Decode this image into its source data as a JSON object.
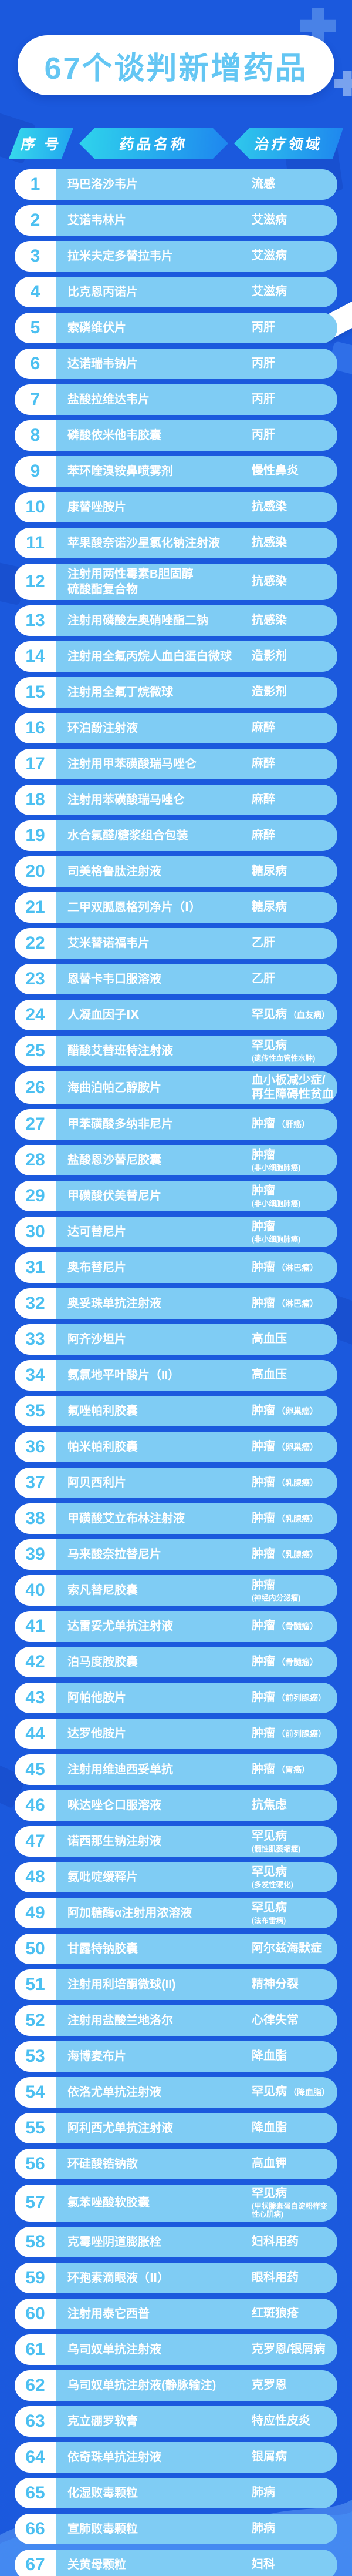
{
  "page": {
    "title": "67个谈判新增药品"
  },
  "colors": {
    "background": "#1b59dd",
    "row_body": "#7fccf4",
    "number_blue": "#4cc0f1",
    "title_blue": "#64c6f3",
    "banner_gradient_start": "#38daec",
    "banner_gradient_end": "#1e86ef",
    "wave_light": "#4489f1",
    "wave_lighter": "#5f9cf4",
    "text_white": "#ffffff"
  },
  "table": {
    "columns": [
      "序 号",
      "药品名称",
      "治疗领域"
    ],
    "rows": [
      {
        "no": "1",
        "name": "玛巴洛沙韦片",
        "area": "流感",
        "note": "",
        "note_style": "none"
      },
      {
        "no": "2",
        "name": "艾诺韦林片",
        "area": "艾滋病",
        "note": "",
        "note_style": "none"
      },
      {
        "no": "3",
        "name": "拉米夫定多替拉韦片",
        "area": "艾滋病",
        "note": "",
        "note_style": "none"
      },
      {
        "no": "4",
        "name": "比克恩丙诺片",
        "area": "艾滋病",
        "note": "",
        "note_style": "none"
      },
      {
        "no": "5",
        "name": "索磷维伏片",
        "area": "丙肝",
        "note": "",
        "note_style": "none"
      },
      {
        "no": "6",
        "name": "达诺瑞韦钠片",
        "area": "丙肝",
        "note": "",
        "note_style": "none"
      },
      {
        "no": "7",
        "name": "盐酸拉维达韦片",
        "area": "丙肝",
        "note": "",
        "note_style": "none"
      },
      {
        "no": "8",
        "name": "磷酸依米他韦胶囊",
        "area": "丙肝",
        "note": "",
        "note_style": "none"
      },
      {
        "no": "9",
        "name": "苯环喹溴铵鼻喷雾剂",
        "area": "慢性鼻炎",
        "note": "",
        "note_style": "none"
      },
      {
        "no": "10",
        "name": "康替唑胺片",
        "area": "抗感染",
        "note": "",
        "note_style": "none"
      },
      {
        "no": "11",
        "name": "苹果酸奈诺沙星氯化钠注射液",
        "area": "抗感染",
        "note": "",
        "note_style": "none"
      },
      {
        "no": "12",
        "name": "注射用两性霉素B胆固醇\n硫酸酯复合物",
        "area": "抗感染",
        "note": "",
        "note_style": "none"
      },
      {
        "no": "13",
        "name": "注射用磷酸左奥硝唑酯二钠",
        "area": "抗感染",
        "note": "",
        "note_style": "none"
      },
      {
        "no": "14",
        "name": "注射用全氟丙烷人血白蛋白微球",
        "area": "造影剂",
        "note": "",
        "note_style": "none"
      },
      {
        "no": "15",
        "name": "注射用全氟丁烷微球",
        "area": "造影剂",
        "note": "",
        "note_style": "none"
      },
      {
        "no": "16",
        "name": "环泊酚注射液",
        "area": "麻醉",
        "note": "",
        "note_style": "none"
      },
      {
        "no": "17",
        "name": "注射用甲苯磺酸瑞马唑仑",
        "area": "麻醉",
        "note": "",
        "note_style": "none"
      },
      {
        "no": "18",
        "name": "注射用苯磺酸瑞马唑仑",
        "area": "麻醉",
        "note": "",
        "note_style": "none"
      },
      {
        "no": "19",
        "name": "水合氯醛/糖浆组合包装",
        "area": "麻醉",
        "note": "",
        "note_style": "none"
      },
      {
        "no": "20",
        "name": "司美格鲁肽注射液",
        "area": "糖尿病",
        "note": "",
        "note_style": "none"
      },
      {
        "no": "21",
        "name": "二甲双胍恩格列净片（Ⅰ）",
        "area": "糖尿病",
        "note": "",
        "note_style": "none"
      },
      {
        "no": "22",
        "name": "艾米替诺福韦片",
        "area": "乙肝",
        "note": "",
        "note_style": "none"
      },
      {
        "no": "23",
        "name": "恩替卡韦口服溶液",
        "area": "乙肝",
        "note": "",
        "note_style": "none"
      },
      {
        "no": "24",
        "name": "人凝血因子Ⅸ",
        "area": "罕见病",
        "note": "（血友病）",
        "note_style": "inline"
      },
      {
        "no": "25",
        "name": "醋酸艾替班特注射液",
        "area": "罕见病",
        "note": "(遗传性血管性水肿)",
        "note_style": "block"
      },
      {
        "no": "26",
        "name": "海曲泊帕乙醇胺片",
        "area": "血小板减少症/\n再生障碍性贫血",
        "note": "",
        "note_style": "none"
      },
      {
        "no": "27",
        "name": "甲苯磺酸多纳非尼片",
        "area": "肿瘤",
        "note": "（肝癌）",
        "note_style": "inline"
      },
      {
        "no": "28",
        "name": "盐酸恩沙替尼胶囊",
        "area": "肿瘤",
        "note": "(非小细胞肺癌)",
        "note_style": "block"
      },
      {
        "no": "29",
        "name": "甲磺酸伏美替尼片",
        "area": "肿瘤",
        "note": "(非小细胞肺癌)",
        "note_style": "block"
      },
      {
        "no": "30",
        "name": "达可替尼片",
        "area": "肿瘤",
        "note": "(非小细胞肺癌)",
        "note_style": "block"
      },
      {
        "no": "31",
        "name": "奥布替尼片",
        "area": "肿瘤",
        "note": "（淋巴瘤）",
        "note_style": "inline"
      },
      {
        "no": "32",
        "name": "奥妥珠单抗注射液",
        "area": "肿瘤",
        "note": "（淋巴瘤）",
        "note_style": "inline"
      },
      {
        "no": "33",
        "name": "阿齐沙坦片",
        "area": "高血压",
        "note": "",
        "note_style": "none"
      },
      {
        "no": "34",
        "name": "氨氯地平叶酸片（II）",
        "area": "高血压",
        "note": "",
        "note_style": "none"
      },
      {
        "no": "35",
        "name": "氟唑帕利胶囊",
        "area": "肿瘤",
        "note": "（卵巢癌）",
        "note_style": "inline"
      },
      {
        "no": "36",
        "name": "帕米帕利胶囊",
        "area": "肿瘤",
        "note": "（卵巢癌）",
        "note_style": "inline"
      },
      {
        "no": "37",
        "name": "阿贝西利片",
        "area": "肿瘤",
        "note": "（乳腺癌）",
        "note_style": "inline"
      },
      {
        "no": "38",
        "name": "甲磺酸艾立布林注射液",
        "area": "肿瘤",
        "note": "（乳腺癌）",
        "note_style": "inline"
      },
      {
        "no": "39",
        "name": "马来酸奈拉替尼片",
        "area": "肿瘤",
        "note": "（乳腺癌）",
        "note_style": "inline"
      },
      {
        "no": "40",
        "name": "索凡替尼胶囊",
        "area": "肿瘤",
        "note": "(神经内分泌瘤)",
        "note_style": "block"
      },
      {
        "no": "41",
        "name": "达雷妥尤单抗注射液",
        "area": "肿瘤",
        "note": "（骨髓瘤）",
        "note_style": "inline"
      },
      {
        "no": "42",
        "name": "泊马度胺胶囊",
        "area": "肿瘤",
        "note": "（骨髓瘤）",
        "note_style": "inline"
      },
      {
        "no": "43",
        "name": "阿帕他胺片",
        "area": "肿瘤",
        "note": "（前列腺癌）",
        "note_style": "inline"
      },
      {
        "no": "44",
        "name": "达罗他胺片",
        "area": "肿瘤",
        "note": "（前列腺癌）",
        "note_style": "inline"
      },
      {
        "no": "45",
        "name": "注射用维迪西妥单抗",
        "area": "肿瘤",
        "note": "（胃癌）",
        "note_style": "inline"
      },
      {
        "no": "46",
        "name": "咪达唑仑口服溶液",
        "area": "抗焦虑",
        "note": "",
        "note_style": "none"
      },
      {
        "no": "47",
        "name": "诺西那生钠注射液",
        "area": "罕见病",
        "note": "(髓性肌萎缩症)",
        "note_style": "block"
      },
      {
        "no": "48",
        "name": "氨吡啶缓释片",
        "area": "罕见病",
        "note": "(多发性硬化)",
        "note_style": "block"
      },
      {
        "no": "49",
        "name": "阿加糖酶α注射用浓溶液",
        "area": "罕见病",
        "note": "(法布雷病)",
        "note_style": "block"
      },
      {
        "no": "50",
        "name": "甘露特钠胶囊",
        "area": "阿尔兹海默症",
        "note": "",
        "note_style": "none"
      },
      {
        "no": "51",
        "name": "注射用利培酮微球(II)",
        "area": "精神分裂",
        "note": "",
        "note_style": "none"
      },
      {
        "no": "52",
        "name": "注射用盐酸兰地洛尔",
        "area": "心律失常",
        "note": "",
        "note_style": "none"
      },
      {
        "no": "53",
        "name": "海博麦布片",
        "area": "降血脂",
        "note": "",
        "note_style": "none"
      },
      {
        "no": "54",
        "name": "依洛尤单抗注射液",
        "area": "罕见病",
        "note": "（降血脂）",
        "note_style": "inline"
      },
      {
        "no": "55",
        "name": "阿利西尤单抗注射液",
        "area": "降血脂",
        "note": "",
        "note_style": "none"
      },
      {
        "no": "56",
        "name": "环硅酸锆钠散",
        "area": "高血钾",
        "note": "",
        "note_style": "none"
      },
      {
        "no": "57",
        "name": "氯苯唑酸软胶囊",
        "area": "罕见病",
        "note": "(甲状腺素蛋白淀粉样变性心肌病)",
        "note_style": "block"
      },
      {
        "no": "58",
        "name": "克霉唑阴道膨胀栓",
        "area": "妇科用药",
        "note": "",
        "note_style": "none"
      },
      {
        "no": "59",
        "name": "环孢素滴眼液（Ⅱ）",
        "area": "眼科用药",
        "note": "",
        "note_style": "none"
      },
      {
        "no": "60",
        "name": "注射用泰它西普",
        "area": "红斑狼疮",
        "note": "",
        "note_style": "none"
      },
      {
        "no": "61",
        "name": "乌司奴单抗注射液",
        "area": "克罗恩/银屑病",
        "note": "",
        "note_style": "none"
      },
      {
        "no": "62",
        "name": "乌司奴单抗注射液(静脉输注)",
        "area": "克罗恩",
        "note": "",
        "note_style": "none"
      },
      {
        "no": "63",
        "name": "克立硼罗软膏",
        "area": "特应性皮炎",
        "note": "",
        "note_style": "none"
      },
      {
        "no": "64",
        "name": "依奇珠单抗注射液",
        "area": "银屑病",
        "note": "",
        "note_style": "none"
      },
      {
        "no": "65",
        "name": "化湿败毒颗粒",
        "area": "肺病",
        "note": "",
        "note_style": "none"
      },
      {
        "no": "66",
        "name": "宣肺败毒颗粒",
        "area": "肺病",
        "note": "",
        "note_style": "none"
      },
      {
        "no": "67",
        "name": "关黄母颗粒",
        "area": "妇科",
        "note": "",
        "note_style": "none"
      }
    ]
  }
}
